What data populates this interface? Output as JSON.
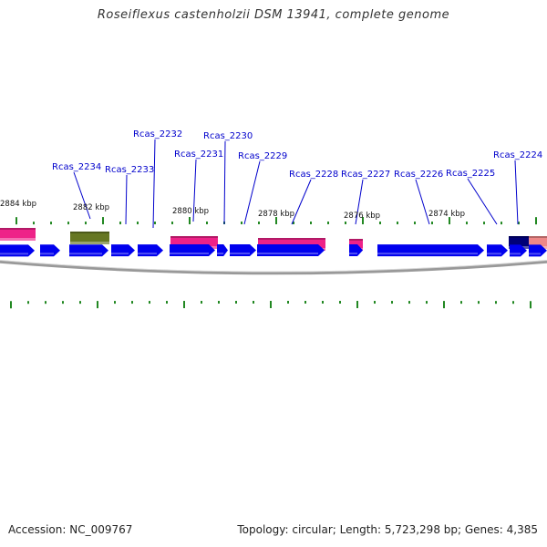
{
  "title": "Roseiflexus castenholzii DSM 13941, complete genome",
  "footer": {
    "accession": "Accession: NC_009767",
    "topology": "Topology: circular; Length: 5,723,298 bp; Genes: 4,385"
  },
  "colors": {
    "label": "#0000cc",
    "cds": "#0000ee",
    "pink": "#ee2288",
    "olive": "#667722",
    "navy": "#000077",
    "salmon": "#ee8888",
    "tick": "#228822",
    "backbone": "#888888"
  },
  "ruler_labels": [
    "2884 kbp",
    "2882 kbp",
    "2880 kbp",
    "2878 kbp",
    "2876 kbp",
    "2874 kbp"
  ],
  "gene_labels": [
    "Rcas_2234",
    "Rcas_2233",
    "Rcas_2232",
    "Rcas_2231",
    "Rcas_2230",
    "Rcas_2229",
    "Rcas_2228",
    "Rcas_2227",
    "Rcas_2226",
    "Rcas_2225",
    "Rcas_2224"
  ]
}
